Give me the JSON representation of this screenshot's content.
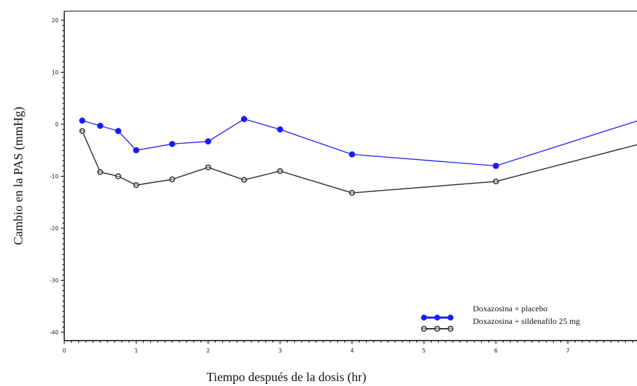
{
  "chart_data": {
    "type": "line",
    "xlabel": "Tiempo después de la dosis (hr)",
    "ylabel": "Cambio en la PAS (mmHg)",
    "xlim": [
      0,
      8
    ],
    "ylim": [
      -40,
      20
    ],
    "x_ticks": [
      0,
      1,
      2,
      3,
      4,
      5,
      6,
      7
    ],
    "y_ticks": [
      20,
      10,
      0,
      -10,
      -20,
      -30,
      -40
    ],
    "grid": false,
    "legend_position": "bottom-right",
    "series": [
      {
        "name": "Doxazosina + placebo",
        "color": "#1a1aff",
        "x": [
          0.25,
          0.5,
          0.75,
          1,
          1.5,
          2,
          2.5,
          3,
          4,
          6,
          8
        ],
        "y": [
          0.7,
          -0.3,
          -1.3,
          -5.0,
          -3.8,
          -3.3,
          1.0,
          -1.0,
          -5.8,
          -8.0,
          0.8
        ]
      },
      {
        "name": "Doxazosina + sildenafilo  25 mg",
        "color": "#333333",
        "x": [
          0.25,
          0.5,
          0.75,
          1,
          1.5,
          2,
          2.5,
          3,
          4,
          6,
          8
        ],
        "y": [
          -1.3,
          -9.2,
          -10.0,
          -11.7,
          -10.6,
          -8.3,
          -10.7,
          -9.0,
          -13.2,
          -11.0,
          -3.8
        ]
      }
    ]
  }
}
